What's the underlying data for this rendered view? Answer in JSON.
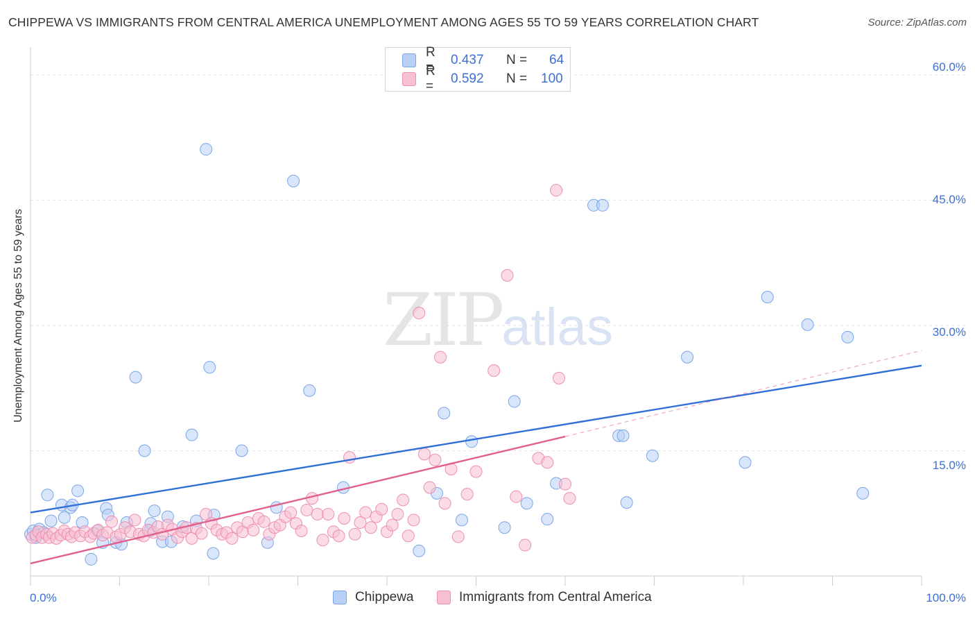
{
  "title": "CHIPPEWA VS IMMIGRANTS FROM CENTRAL AMERICA UNEMPLOYMENT AMONG AGES 55 TO 59 YEARS CORRELATION CHART",
  "source": "Source: ZipAtlas.com",
  "watermark": {
    "zip": "ZIP",
    "atlas": "atlas"
  },
  "legend": {
    "rows": [
      {
        "r_label": "R =",
        "r_value": "0.437",
        "n_label": "N =",
        "n_value": "64"
      },
      {
        "r_label": "R =",
        "r_value": "0.592",
        "n_label": "N =",
        "n_value": "100"
      }
    ]
  },
  "colors": {
    "chippewa_fill": "#b8d0f5",
    "chippewa_stroke": "#7aa6e6",
    "chippewa_line": "#2f6fd6",
    "immig_fill": "#f7c0d2",
    "immig_stroke": "#ec8fb0",
    "immig_line": "#e0608e",
    "axis_text": "#3b6fd4",
    "grid": "#e2e2e2"
  },
  "chart_data": {
    "type": "scatter",
    "title": "CHIPPEWA VS IMMIGRANTS FROM CENTRAL AMERICA UNEMPLOYMENT AMONG AGES 55 TO 59 YEARS CORRELATION CHART",
    "xlabel": "",
    "ylabel": "Unemployment Among Ages 55 to 59 years",
    "xlim": [
      0,
      100
    ],
    "ylim": [
      0,
      63
    ],
    "x_tick_labels": [
      "0.0%",
      "100.0%"
    ],
    "y_ticks": [
      15,
      30,
      45,
      60
    ],
    "y_tick_labels": [
      "15.0%",
      "30.0%",
      "45.0%",
      "60.0%"
    ],
    "grid": true,
    "legend_position": "top-center",
    "series": [
      {
        "name": "Chippewa",
        "color": "#b8d0f5",
        "trend": {
          "x": [
            0,
            100
          ],
          "y": [
            7.6,
            25.2
          ]
        },
        "points": [
          [
            0.0,
            5.0
          ],
          [
            0.3,
            5.4
          ],
          [
            0.6,
            4.6
          ],
          [
            1.0,
            5.6
          ],
          [
            1.5,
            5.2
          ],
          [
            1.9,
            9.7
          ],
          [
            2.3,
            6.6
          ],
          [
            3.5,
            8.5
          ],
          [
            3.8,
            7.0
          ],
          [
            4.5,
            8.2
          ],
          [
            4.7,
            8.5
          ],
          [
            5.3,
            10.2
          ],
          [
            5.8,
            6.4
          ],
          [
            6.8,
            2.0
          ],
          [
            7.5,
            5.4
          ],
          [
            8.1,
            4.0
          ],
          [
            8.5,
            8.1
          ],
          [
            8.7,
            7.3
          ],
          [
            9.6,
            4.0
          ],
          [
            10.2,
            3.8
          ],
          [
            10.8,
            6.4
          ],
          [
            11.8,
            23.8
          ],
          [
            12.8,
            15.0
          ],
          [
            13.4,
            5.4
          ],
          [
            13.5,
            6.3
          ],
          [
            13.9,
            7.8
          ],
          [
            14.8,
            4.1
          ],
          [
            15.4,
            7.1
          ],
          [
            15.8,
            4.1
          ],
          [
            17.1,
            5.9
          ],
          [
            18.1,
            16.9
          ],
          [
            18.6,
            6.6
          ],
          [
            19.7,
            51.1
          ],
          [
            20.1,
            25.0
          ],
          [
            20.5,
            2.7
          ],
          [
            20.6,
            7.3
          ],
          [
            23.7,
            15.0
          ],
          [
            26.6,
            4.0
          ],
          [
            27.6,
            8.2
          ],
          [
            29.5,
            47.3
          ],
          [
            31.3,
            22.2
          ],
          [
            35.1,
            10.6
          ],
          [
            43.6,
            3.0
          ],
          [
            45.6,
            9.9
          ],
          [
            46.4,
            19.5
          ],
          [
            48.4,
            6.7
          ],
          [
            49.5,
            16.1
          ],
          [
            53.2,
            5.8
          ],
          [
            54.3,
            20.9
          ],
          [
            55.7,
            8.7
          ],
          [
            58.0,
            6.8
          ],
          [
            59.0,
            11.1
          ],
          [
            63.2,
            44.4
          ],
          [
            64.2,
            44.4
          ],
          [
            66.0,
            16.8
          ],
          [
            66.5,
            16.8
          ],
          [
            66.9,
            8.8
          ],
          [
            69.8,
            14.4
          ],
          [
            73.7,
            26.2
          ],
          [
            80.2,
            13.6
          ],
          [
            82.7,
            33.4
          ],
          [
            87.2,
            30.1
          ],
          [
            91.7,
            28.6
          ],
          [
            93.4,
            9.9
          ]
        ]
      },
      {
        "name": "Immigrants from Central America",
        "color": "#f7c0d2",
        "trend": {
          "x": [
            0,
            60
          ],
          "y": [
            1.5,
            16.7
          ]
        },
        "trend_dashed_extension": {
          "x": [
            60,
            100
          ],
          "y": [
            16.7,
            27.0
          ]
        },
        "points": [
          [
            0.2,
            4.6
          ],
          [
            0.6,
            4.9
          ],
          [
            0.9,
            5.3
          ],
          [
            1.3,
            4.6
          ],
          [
            1.8,
            5.0
          ],
          [
            2.1,
            4.6
          ],
          [
            2.5,
            5.1
          ],
          [
            2.9,
            4.5
          ],
          [
            3.4,
            4.9
          ],
          [
            3.8,
            5.4
          ],
          [
            4.2,
            5.0
          ],
          [
            4.6,
            4.7
          ],
          [
            5.0,
            5.2
          ],
          [
            5.6,
            4.8
          ],
          [
            6.1,
            5.3
          ],
          [
            6.7,
            4.7
          ],
          [
            7.1,
            5.1
          ],
          [
            7.6,
            5.5
          ],
          [
            8.1,
            4.9
          ],
          [
            8.6,
            5.2
          ],
          [
            9.1,
            6.5
          ],
          [
            9.6,
            4.7
          ],
          [
            10.1,
            5.0
          ],
          [
            10.6,
            5.8
          ],
          [
            11.2,
            5.3
          ],
          [
            11.7,
            6.7
          ],
          [
            12.2,
            5.0
          ],
          [
            12.7,
            4.8
          ],
          [
            13.2,
            5.5
          ],
          [
            13.8,
            5.2
          ],
          [
            14.3,
            5.9
          ],
          [
            14.8,
            5.0
          ],
          [
            15.4,
            6.1
          ],
          [
            15.9,
            5.6
          ],
          [
            16.5,
            4.6
          ],
          [
            17.0,
            5.3
          ],
          [
            17.5,
            5.8
          ],
          [
            18.1,
            4.5
          ],
          [
            18.6,
            5.7
          ],
          [
            19.2,
            5.1
          ],
          [
            19.7,
            7.4
          ],
          [
            20.3,
            6.3
          ],
          [
            20.9,
            5.5
          ],
          [
            21.5,
            5.0
          ],
          [
            22.0,
            5.2
          ],
          [
            22.6,
            4.5
          ],
          [
            23.2,
            5.8
          ],
          [
            23.8,
            5.3
          ],
          [
            24.4,
            6.4
          ],
          [
            25.0,
            5.5
          ],
          [
            25.6,
            6.9
          ],
          [
            26.2,
            6.5
          ],
          [
            26.8,
            5.0
          ],
          [
            27.4,
            5.8
          ],
          [
            28.0,
            6.1
          ],
          [
            28.6,
            7.1
          ],
          [
            29.2,
            7.6
          ],
          [
            29.8,
            6.3
          ],
          [
            30.4,
            5.4
          ],
          [
            31.0,
            7.9
          ],
          [
            31.6,
            9.3
          ],
          [
            32.2,
            7.4
          ],
          [
            32.8,
            4.3
          ],
          [
            33.4,
            7.4
          ],
          [
            34.0,
            5.3
          ],
          [
            34.6,
            4.8
          ],
          [
            35.2,
            6.9
          ],
          [
            35.8,
            14.2
          ],
          [
            36.4,
            5.0
          ],
          [
            37.0,
            6.4
          ],
          [
            37.6,
            7.6
          ],
          [
            38.2,
            5.8
          ],
          [
            38.8,
            7.1
          ],
          [
            39.4,
            8.0
          ],
          [
            40.0,
            5.3
          ],
          [
            40.6,
            6.1
          ],
          [
            41.2,
            7.4
          ],
          [
            41.8,
            9.1
          ],
          [
            42.4,
            4.8
          ],
          [
            43.0,
            6.7
          ],
          [
            43.6,
            31.5
          ],
          [
            44.2,
            14.6
          ],
          [
            44.8,
            10.6
          ],
          [
            45.4,
            13.9
          ],
          [
            46.0,
            26.2
          ],
          [
            46.5,
            8.7
          ],
          [
            47.2,
            12.8
          ],
          [
            48.0,
            4.7
          ],
          [
            49.0,
            9.8
          ],
          [
            50.0,
            12.5
          ],
          [
            52.0,
            24.6
          ],
          [
            53.5,
            36.0
          ],
          [
            54.5,
            9.5
          ],
          [
            55.5,
            3.7
          ],
          [
            57.0,
            14.1
          ],
          [
            58.0,
            13.6
          ],
          [
            59.0,
            46.2
          ],
          [
            59.3,
            23.7
          ],
          [
            60.0,
            11.0
          ],
          [
            60.5,
            9.3
          ]
        ]
      }
    ]
  },
  "bottom_legend": [
    "Chippewa",
    "Immigrants from Central America"
  ]
}
